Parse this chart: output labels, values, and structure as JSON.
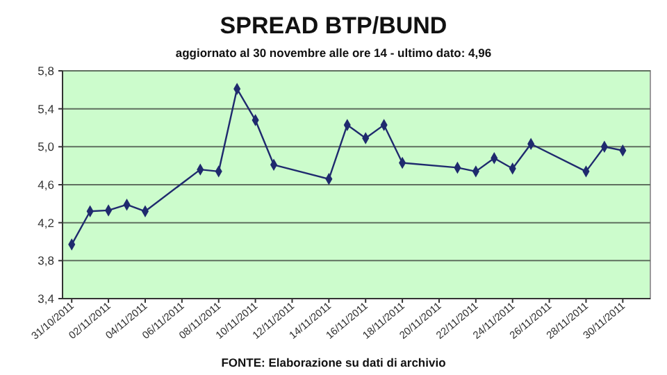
{
  "chart_data": {
    "type": "line",
    "title": "SPREAD BTP/BUND",
    "subtitle": "aggiornato al 30 novembre alle ore 14 - ultimo dato: 4,96",
    "x": [
      "2011-10-31",
      "2011-11-01",
      "2011-11-02",
      "2011-11-03",
      "2011-11-04",
      "2011-11-07",
      "2011-11-08",
      "2011-11-09",
      "2011-11-10",
      "2011-11-11",
      "2011-11-14",
      "2011-11-15",
      "2011-11-16",
      "2011-11-17",
      "2011-11-18",
      "2011-11-21",
      "2011-11-22",
      "2011-11-23",
      "2011-11-24",
      "2011-11-25",
      "2011-11-28",
      "2011-11-29",
      "2011-11-30"
    ],
    "series": [
      {
        "color": "#1f2a6e",
        "values": [
          3.97,
          4.32,
          4.33,
          4.39,
          4.32,
          4.76,
          4.74,
          5.61,
          5.28,
          4.81,
          4.66,
          5.23,
          5.09,
          5.23,
          4.83,
          4.78,
          4.74,
          4.88,
          4.77,
          5.03,
          4.74,
          5.0,
          4.96
        ]
      }
    ],
    "xlim": [
      "2011-10-30T12:00",
      "2011-12-01T12:00"
    ],
    "xticks": [
      {
        "value": "2011-10-31",
        "label": "31/10/2011"
      },
      {
        "value": "2011-11-02",
        "label": "02/11/2011"
      },
      {
        "value": "2011-11-04",
        "label": "04/11/2011"
      },
      {
        "value": "2011-11-06",
        "label": "06/11/2011"
      },
      {
        "value": "2011-11-08",
        "label": "08/11/2011"
      },
      {
        "value": "2011-11-10",
        "label": "10/11/2011"
      },
      {
        "value": "2011-11-12",
        "label": "12/11/2011"
      },
      {
        "value": "2011-11-14",
        "label": "14/11/2011"
      },
      {
        "value": "2011-11-16",
        "label": "16/11/2011"
      },
      {
        "value": "2011-11-18",
        "label": "18/11/2011"
      },
      {
        "value": "2011-11-20",
        "label": "20/11/2011"
      },
      {
        "value": "2011-11-22",
        "label": "22/11/2011"
      },
      {
        "value": "2011-11-24",
        "label": "24/11/2011"
      },
      {
        "value": "2011-11-26",
        "label": "26/11/2011"
      },
      {
        "value": "2011-11-28",
        "label": "28/11/2011"
      },
      {
        "value": "2011-11-30",
        "label": "30/11/2011"
      }
    ],
    "ylim": [
      3.4,
      5.8
    ],
    "yticks": [
      {
        "value": 3.4,
        "label": "3,4"
      },
      {
        "value": 3.8,
        "label": "3,8"
      },
      {
        "value": 4.2,
        "label": "4,2"
      },
      {
        "value": 4.6,
        "label": "4,6"
      },
      {
        "value": 5.0,
        "label": "5,0"
      },
      {
        "value": 5.4,
        "label": "5,4"
      },
      {
        "value": 5.8,
        "label": "5,8"
      }
    ],
    "grid": "y",
    "marker": "diamond",
    "line_style": "solid",
    "annotations": [
      "FONTE: Elaborazione su dati di archivio"
    ]
  }
}
